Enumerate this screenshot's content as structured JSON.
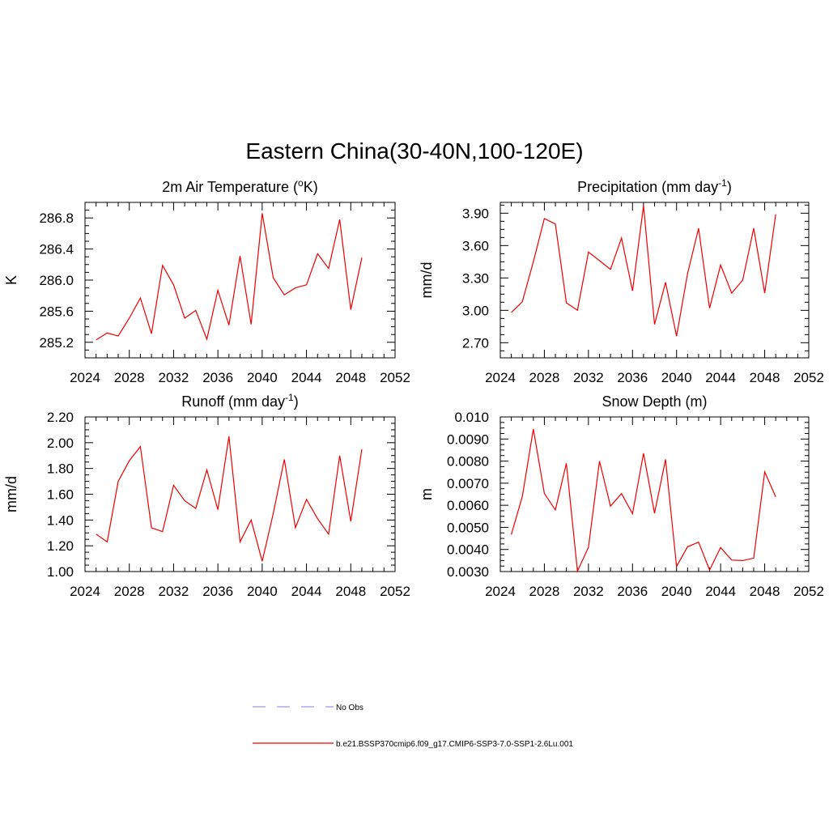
{
  "figure": {
    "title": "Eastern China(30-40N,100-120E)",
    "legend": [
      {
        "label": "No Obs",
        "color": "#9999ee",
        "dash": "dashed"
      },
      {
        "label": "b.e21.BSSP370cmip6.f09_g17.CMIP6-SSP3-7.0-SSP1-2.6Lu.001",
        "color": "#ee0000",
        "dash": "solid"
      }
    ]
  },
  "chart_data": [
    {
      "type": "line",
      "title": "2m Air Temperature (",
      "title_sup": "o",
      "title_tail": "K)",
      "ylabel": "K",
      "xlim": [
        2024,
        2052
      ],
      "xticks": [
        2024,
        2028,
        2032,
        2036,
        2040,
        2044,
        2048,
        2052
      ],
      "ylim": [
        285.0,
        287.0
      ],
      "yticks": [
        "285.2",
        "285.6",
        "286.0",
        "286.4",
        "286.8"
      ],
      "x": [
        2025,
        2026,
        2027,
        2028,
        2029,
        2030,
        2031,
        2032,
        2033,
        2034,
        2035,
        2036,
        2037,
        2038,
        2039,
        2040,
        2041,
        2042,
        2043,
        2044,
        2045,
        2046,
        2047,
        2048,
        2049
      ],
      "series": [
        {
          "color": "#ee0000",
          "values": [
            285.23,
            285.32,
            285.28,
            285.51,
            285.77,
            285.31,
            286.19,
            285.94,
            285.51,
            285.61,
            285.24,
            285.87,
            285.42,
            286.31,
            285.43,
            286.86,
            286.03,
            285.81,
            285.9,
            285.94,
            286.34,
            286.15,
            286.78,
            285.62,
            286.29
          ]
        }
      ]
    },
    {
      "type": "line",
      "title": "Precipitation (mm day",
      "title_sup": "-1",
      "title_tail": ")",
      "ylabel": "mm/d",
      "xlim": [
        2024,
        2052
      ],
      "xticks": [
        2024,
        2028,
        2032,
        2036,
        2040,
        2044,
        2048,
        2052
      ],
      "ylim": [
        2.56,
        4.0
      ],
      "yticks": [
        "2.70",
        "3.00",
        "3.30",
        "3.60",
        "3.90"
      ],
      "x": [
        2025,
        2026,
        2027,
        2028,
        2029,
        2030,
        2031,
        2032,
        2033,
        2034,
        2035,
        2036,
        2037,
        2038,
        2039,
        2040,
        2041,
        2042,
        2043,
        2044,
        2045,
        2046,
        2047,
        2048,
        2049
      ],
      "series": [
        {
          "color": "#ee0000",
          "values": [
            2.98,
            3.08,
            3.45,
            3.85,
            3.8,
            3.07,
            3.0,
            3.54,
            3.46,
            3.38,
            3.67,
            3.18,
            3.97,
            2.87,
            3.26,
            2.76,
            3.34,
            3.76,
            3.02,
            3.42,
            3.16,
            3.28,
            3.76,
            3.16,
            3.89
          ]
        }
      ]
    },
    {
      "type": "line",
      "title": "Runoff (mm day",
      "title_sup": "-1",
      "title_tail": ")",
      "ylabel": "mm/d",
      "xlim": [
        2024,
        2052
      ],
      "xticks": [
        2024,
        2028,
        2032,
        2036,
        2040,
        2044,
        2048,
        2052
      ],
      "ylim": [
        1.0,
        2.2
      ],
      "yticks": [
        "1.00",
        "1.20",
        "1.40",
        "1.60",
        "1.80",
        "2.00",
        "2.20"
      ],
      "x": [
        2025,
        2026,
        2027,
        2028,
        2029,
        2030,
        2031,
        2032,
        2033,
        2034,
        2035,
        2036,
        2037,
        2038,
        2039,
        2040,
        2041,
        2042,
        2043,
        2044,
        2045,
        2046,
        2047,
        2048,
        2049
      ],
      "series": [
        {
          "color": "#ee0000",
          "values": [
            1.29,
            1.23,
            1.7,
            1.86,
            1.97,
            1.34,
            1.31,
            1.67,
            1.55,
            1.49,
            1.79,
            1.48,
            2.05,
            1.23,
            1.4,
            1.08,
            1.45,
            1.87,
            1.34,
            1.56,
            1.41,
            1.29,
            1.9,
            1.39,
            1.95
          ]
        }
      ]
    },
    {
      "type": "line",
      "title": "Snow Depth (m)",
      "title_sup": "",
      "title_tail": "",
      "ylabel": "m",
      "xlim": [
        2024,
        2052
      ],
      "xticks": [
        2024,
        2028,
        2032,
        2036,
        2040,
        2044,
        2048,
        2052
      ],
      "ylim": [
        0.003,
        0.01
      ],
      "yticks": [
        "0.0030",
        "0.0040",
        "0.0050",
        "0.0060",
        "0.0070",
        "0.0080",
        "0.0090",
        "0.010"
      ],
      "x": [
        2025,
        2026,
        2027,
        2028,
        2029,
        2030,
        2031,
        2032,
        2033,
        2034,
        2035,
        2036,
        2037,
        2038,
        2039,
        2040,
        2041,
        2042,
        2043,
        2044,
        2045,
        2046,
        2047,
        2048,
        2049
      ],
      "series": [
        {
          "color": "#ee0000",
          "values": [
            0.00468,
            0.0064,
            0.00945,
            0.00654,
            0.00579,
            0.0079,
            0.00302,
            0.0041,
            0.008,
            0.00596,
            0.00653,
            0.00562,
            0.00835,
            0.00564,
            0.00808,
            0.00323,
            0.00412,
            0.00433,
            0.00307,
            0.00409,
            0.00352,
            0.0035,
            0.00361,
            0.00751,
            0.00638
          ]
        }
      ]
    }
  ]
}
